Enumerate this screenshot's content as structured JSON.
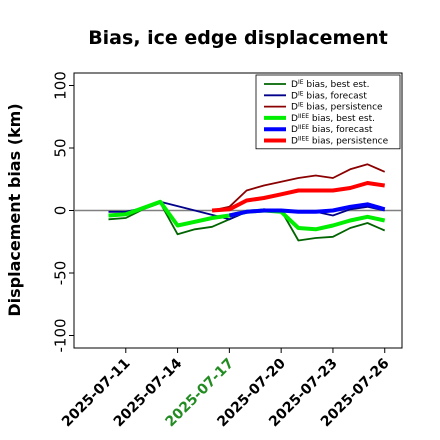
{
  "chart_data": {
    "type": "line",
    "title": "Bias, ice edge displacement",
    "xlabel": "",
    "ylabel": "Displacement bias (km)",
    "ylim": [
      -110,
      110
    ],
    "xlim": [
      "2025-07-08",
      "2025-07-27"
    ],
    "grid": false,
    "legend_position": "top-right",
    "x_ticks": [
      "2025-07-11",
      "2025-07-14",
      "2025-07-17",
      "2025-07-20",
      "2025-07-23",
      "2025-07-26"
    ],
    "y_ticks": [
      -100,
      -50,
      0,
      50,
      100
    ],
    "highlight_tick": "2025-07-17",
    "highlight_color": "#228b22",
    "zero_line": true,
    "series": [
      {
        "name": "D^IE bias, best est.",
        "prefix": "D",
        "sup": "IE",
        "suffix": " bias, best est.",
        "color": "#006400",
        "linewidth": 1.8,
        "x": [
          "2025-07-10",
          "2025-07-11",
          "2025-07-12",
          "2025-07-13",
          "2025-07-14",
          "2025-07-15",
          "2025-07-16",
          "2025-07-17",
          "2025-07-18",
          "2025-07-19",
          "2025-07-20",
          "2025-07-21",
          "2025-07-22",
          "2025-07-23",
          "2025-07-24",
          "2025-07-25",
          "2025-07-26"
        ],
        "y": [
          -7,
          -6,
          1,
          6,
          -19,
          -15,
          -13,
          -7,
          -1,
          1,
          0,
          -24,
          -22,
          -21,
          -14,
          -10,
          -16
        ]
      },
      {
        "name": "D^IE bias, forecast",
        "prefix": "D",
        "sup": "IE",
        "suffix": " bias, forecast",
        "color": "#00008b",
        "linewidth": 1.8,
        "x": [
          "2025-07-10",
          "2025-07-11",
          "2025-07-12",
          "2025-07-13",
          "2025-07-17",
          "2025-07-18",
          "2025-07-19",
          "2025-07-20",
          "2025-07-21",
          "2025-07-22",
          "2025-07-23",
          "2025-07-24",
          "2025-07-25",
          "2025-07-26"
        ],
        "y": [
          -1,
          -1,
          2,
          7,
          -7,
          -1,
          1,
          0,
          -1,
          -1,
          -4,
          1,
          3,
          0
        ]
      },
      {
        "name": "D^IE bias, persistence",
        "prefix": "D",
        "sup": "IE",
        "suffix": " bias, persistence",
        "color": "#8b0000",
        "linewidth": 1.8,
        "x": [
          "2025-07-16",
          "2025-07-17",
          "2025-07-18",
          "2025-07-19",
          "2025-07-20",
          "2025-07-21",
          "2025-07-22",
          "2025-07-23",
          "2025-07-24",
          "2025-07-25",
          "2025-07-26"
        ],
        "y": [
          0,
          3,
          16,
          20,
          23,
          26,
          28,
          26,
          33,
          37,
          31
        ]
      },
      {
        "name": "D^IIEE bias, best est.",
        "prefix": "D",
        "sup": "IIEE",
        "suffix": " bias, best est.",
        "color": "#00ee00",
        "linewidth": 4,
        "x": [
          "2025-07-10",
          "2025-07-11",
          "2025-07-12",
          "2025-07-13",
          "2025-07-14",
          "2025-07-15",
          "2025-07-16",
          "2025-07-17",
          "2025-07-18",
          "2025-07-19",
          "2025-07-20",
          "2025-07-21",
          "2025-07-22",
          "2025-07-23",
          "2025-07-24",
          "2025-07-25",
          "2025-07-26"
        ],
        "y": [
          -4,
          -3,
          2,
          7,
          -12,
          -9,
          -6,
          -4,
          -1,
          0,
          -1,
          -14,
          -15,
          -12,
          -8,
          -5,
          -8
        ]
      },
      {
        "name": "D^IIEE bias, forecast",
        "prefix": "D",
        "sup": "IIEE",
        "suffix": " bias, forecast",
        "color": "#0000ff",
        "linewidth": 4,
        "x": [
          "2025-07-17",
          "2025-07-18",
          "2025-07-19",
          "2025-07-20",
          "2025-07-21",
          "2025-07-22",
          "2025-07-23",
          "2025-07-24",
          "2025-07-25",
          "2025-07-26"
        ],
        "y": [
          -4,
          -1,
          0,
          0,
          -1,
          -1,
          0,
          3,
          5,
          1
        ]
      },
      {
        "name": "D^IIEE bias, persistence",
        "prefix": "D",
        "sup": "IIEE",
        "suffix": " bias, persistence",
        "color": "#ff0000",
        "linewidth": 4,
        "x": [
          "2025-07-16",
          "2025-07-17",
          "2025-07-18",
          "2025-07-19",
          "2025-07-20",
          "2025-07-21",
          "2025-07-22",
          "2025-07-23",
          "2025-07-24",
          "2025-07-25",
          "2025-07-26"
        ],
        "y": [
          0,
          1,
          8,
          10,
          13,
          16,
          16,
          16,
          18,
          22,
          20
        ]
      }
    ]
  }
}
